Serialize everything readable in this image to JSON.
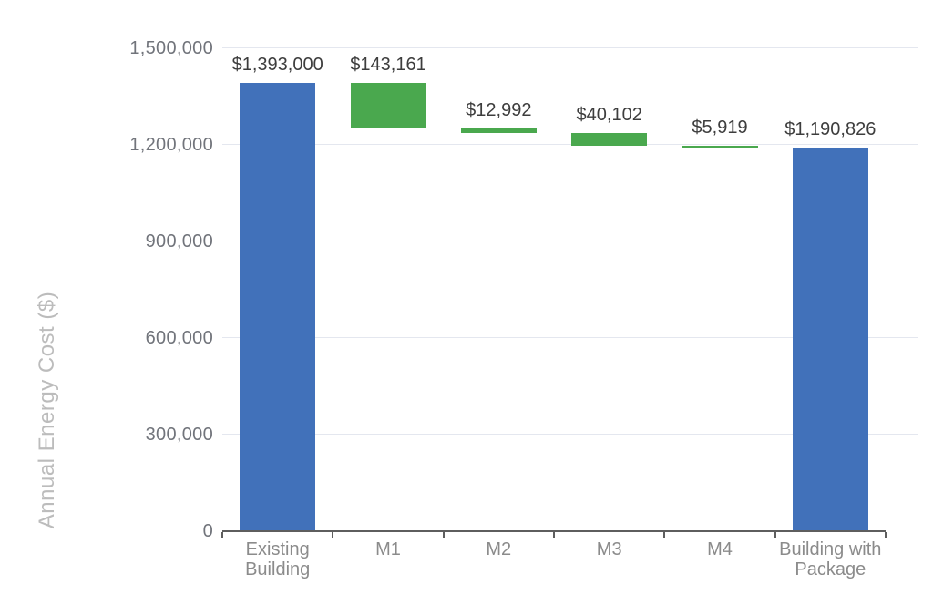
{
  "chart_data": {
    "type": "bar",
    "subtype": "waterfall",
    "title": "",
    "xlabel": "",
    "ylabel": "Annual Energy Cost ($)",
    "ylim": [
      0,
      1500000
    ],
    "grid": "horizontal",
    "legend": "none",
    "yticks": [
      {
        "value": 0,
        "label": "0"
      },
      {
        "value": 300000,
        "label": "300,000"
      },
      {
        "value": 600000,
        "label": "600,000"
      },
      {
        "value": 900000,
        "label": "900,000"
      },
      {
        "value": 1200000,
        "label": "1,200,000"
      },
      {
        "value": 1500000,
        "label": "1,500,000"
      }
    ],
    "categories": [
      "Existing Building",
      "M1",
      "M2",
      "M3",
      "M4",
      "Building with Package"
    ],
    "bars": [
      {
        "category": "Existing Building",
        "start": 0,
        "end": 1393000,
        "value": 1393000,
        "data_label": "$1,393,000",
        "role": "total"
      },
      {
        "category": "M1",
        "start": 1249839,
        "end": 1393000,
        "value": 143161,
        "data_label": "$143,161",
        "role": "saving"
      },
      {
        "category": "M2",
        "start": 1236847,
        "end": 1249839,
        "value": 12992,
        "data_label": "$12,992",
        "role": "saving"
      },
      {
        "category": "M3",
        "start": 1196745,
        "end": 1236847,
        "value": 40102,
        "data_label": "$40,102",
        "role": "saving"
      },
      {
        "category": "M4",
        "start": 1190826,
        "end": 1196745,
        "value": 5919,
        "data_label": "$5,919",
        "role": "saving"
      },
      {
        "category": "Building with Package",
        "start": 0,
        "end": 1190826,
        "value": 1190826,
        "data_label": "$1,190,826",
        "role": "total"
      }
    ],
    "colors": {
      "total": "#4171BA",
      "saving": "#4AA84E",
      "gridline": "#E4E7EF",
      "axis_line": "#5E5E5E",
      "ytick_label": "#71747B",
      "category_label": "#8B8B8B",
      "data_label": "#3D3D3D",
      "axis_title": "#BCBCBC"
    }
  }
}
